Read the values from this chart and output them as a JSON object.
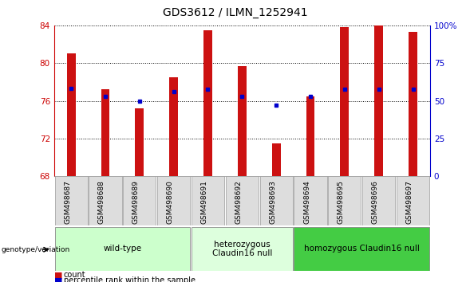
{
  "title": "GDS3612 / ILMN_1252941",
  "samples": [
    "GSM498687",
    "GSM498688",
    "GSM498689",
    "GSM498690",
    "GSM498691",
    "GSM498692",
    "GSM498693",
    "GSM498694",
    "GSM498695",
    "GSM498696",
    "GSM498697"
  ],
  "count_values": [
    81.0,
    77.2,
    75.2,
    78.5,
    83.5,
    79.7,
    71.5,
    76.5,
    83.8,
    84.0,
    83.3
  ],
  "percentile_values": [
    77.3,
    76.5,
    76.0,
    77.0,
    77.2,
    76.5,
    75.5,
    76.5,
    77.2,
    77.2,
    77.2
  ],
  "ymin": 68,
  "ymax": 84,
  "yticks": [
    68,
    72,
    76,
    80,
    84
  ],
  "right_ytick_vals": [
    0,
    25,
    50,
    75,
    100
  ],
  "right_ytick_labels": [
    "0",
    "25",
    "50",
    "75",
    "100%"
  ],
  "bar_color": "#cc1111",
  "dot_color": "#0000cc",
  "bar_width": 0.25,
  "groups": [
    {
      "label": "wild-type",
      "start": 0,
      "end": 3,
      "color": "#ccffcc"
    },
    {
      "label": "heterozygous\nClaudin16 null",
      "start": 4,
      "end": 6,
      "color": "#ddffdd"
    },
    {
      "label": "homozygous Claudin16 null",
      "start": 7,
      "end": 10,
      "color": "#44cc44"
    }
  ],
  "sample_bg_color": "#dddddd",
  "genotype_label": "genotype/variation",
  "legend_count_label": "count",
  "legend_percentile_label": "percentile rank within the sample",
  "title_fontsize": 10,
  "tick_fontsize": 7.5,
  "label_fontsize": 6.5,
  "group_fontsize": 7.5,
  "left_axis_color": "#cc0000",
  "right_axis_color": "#0000cc"
}
